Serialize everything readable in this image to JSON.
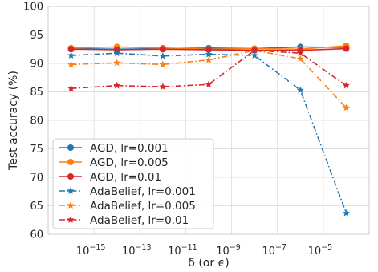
{
  "chart_data": {
    "type": "line",
    "xscale": "log",
    "xlabel": "δ (or ϵ)",
    "ylabel": "Test accuracy (%)",
    "ylim": [
      60,
      100
    ],
    "xlim": [
      1e-17,
      0.001
    ],
    "yticks": [
      60,
      65,
      70,
      75,
      80,
      85,
      90,
      95,
      100
    ],
    "xticks": [
      {
        "value": 1e-15,
        "base": "10",
        "exp": "−15"
      },
      {
        "value": 1e-13,
        "base": "10",
        "exp": "−13"
      },
      {
        "value": 1e-11,
        "base": "10",
        "exp": "−11"
      },
      {
        "value": 1e-09,
        "base": "10",
        "exp": "−9"
      },
      {
        "value": 1e-07,
        "base": "10",
        "exp": "−7"
      },
      {
        "value": 1e-05,
        "base": "10",
        "exp": "−5"
      }
    ],
    "grid": true,
    "legend": "lower-left",
    "x": [
      1e-16,
      1e-14,
      1e-12,
      1e-10,
      1e-08,
      1e-06,
      0.0001
    ],
    "series": [
      {
        "name": "AGD, lr=0.001",
        "color": "#1f77b4",
        "linestyle": "solid",
        "marker": "circle",
        "values": [
          92.6,
          92.5,
          92.6,
          92.7,
          92.6,
          92.9,
          92.8
        ]
      },
      {
        "name": "AGD, lr=0.005",
        "color": "#ff7f0e",
        "linestyle": "solid",
        "marker": "circle",
        "values": [
          92.7,
          92.9,
          92.7,
          92.5,
          92.6,
          92.5,
          93.1
        ]
      },
      {
        "name": "AGD, lr=0.01",
        "color": "#d62728",
        "linestyle": "solid",
        "marker": "circle",
        "values": [
          92.5,
          92.4,
          92.5,
          92.4,
          92.3,
          92.3,
          92.6
        ]
      },
      {
        "name": "AdaBelief, lr=0.001",
        "color": "#1f77b4",
        "linestyle": "dashdot",
        "marker": "star",
        "values": [
          91.4,
          91.8,
          91.3,
          91.6,
          91.4,
          85.3,
          63.7
        ]
      },
      {
        "name": "AdaBelief, lr=0.005",
        "color": "#ff7f0e",
        "linestyle": "dashdot",
        "marker": "star",
        "values": [
          89.8,
          90.1,
          89.8,
          90.6,
          92.3,
          90.8,
          82.2
        ]
      },
      {
        "name": "AdaBelief, lr=0.01",
        "color": "#d62728",
        "linestyle": "dashdot",
        "marker": "star",
        "values": [
          85.6,
          86.1,
          85.9,
          86.3,
          92.3,
          91.8,
          86.1
        ]
      }
    ]
  }
}
